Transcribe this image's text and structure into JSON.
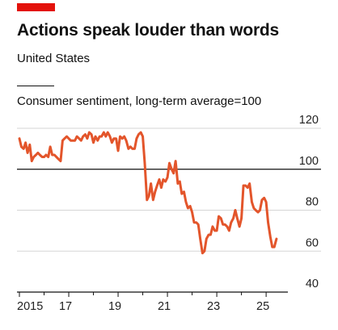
{
  "header": {
    "title": "Actions speak louder than words",
    "subtitle": "United States",
    "ylabel": "Consumer sentiment, long-term average=100"
  },
  "colors": {
    "accent": "#e3120b",
    "line": "#e3552b",
    "grid": "#d5d5d5",
    "axis": "#111111"
  },
  "chart_data": {
    "type": "line",
    "title": "Actions speak louder than words",
    "subtitle": "United States",
    "ylabel": "Consumer sentiment, long-term average=100",
    "xlabel": "",
    "xlim": [
      2015.0,
      2025.75
    ],
    "ylim": [
      40,
      120
    ],
    "yticks": [
      40,
      60,
      80,
      100,
      120
    ],
    "xticks": [
      {
        "value": 2015,
        "label": "2015"
      },
      {
        "value": 2017,
        "label": "17"
      },
      {
        "value": 2019,
        "label": "19"
      },
      {
        "value": 2021,
        "label": "21"
      },
      {
        "value": 2023,
        "label": "23"
      },
      {
        "value": 2025,
        "label": "25"
      }
    ],
    "grid": true,
    "reference_line": 100,
    "series": [
      {
        "x": [
          2015.0,
          2015.08,
          2015.17,
          2015.25,
          2015.33,
          2015.42,
          2015.5,
          2015.58,
          2015.67,
          2015.75,
          2015.83,
          2015.92,
          2016.0,
          2016.08,
          2016.17,
          2016.25,
          2016.33,
          2016.42,
          2016.5,
          2016.58,
          2016.67,
          2016.75,
          2016.83,
          2016.92,
          2017.0,
          2017.08,
          2017.17,
          2017.25,
          2017.33,
          2017.42,
          2017.5,
          2017.58,
          2017.67,
          2017.75,
          2017.83,
          2017.92,
          2018.0,
          2018.08,
          2018.17,
          2018.25,
          2018.33,
          2018.42,
          2018.5,
          2018.58,
          2018.67,
          2018.75,
          2018.83,
          2018.92,
          2019.0,
          2019.08,
          2019.17,
          2019.25,
          2019.33,
          2019.42,
          2019.5,
          2019.58,
          2019.67,
          2019.75,
          2019.83,
          2019.92,
          2020.0,
          2020.08,
          2020.17,
          2020.25,
          2020.33,
          2020.42,
          2020.5,
          2020.58,
          2020.67,
          2020.75,
          2020.83,
          2020.92,
          2021.0,
          2021.08,
          2021.17,
          2021.25,
          2021.33,
          2021.42,
          2021.5,
          2021.58,
          2021.67,
          2021.75,
          2021.83,
          2021.92,
          2022.0,
          2022.08,
          2022.17,
          2022.25,
          2022.33,
          2022.42,
          2022.5,
          2022.58,
          2022.67,
          2022.75,
          2022.83,
          2022.92,
          2023.0,
          2023.08,
          2023.17,
          2023.25,
          2023.33,
          2023.42,
          2023.5,
          2023.58,
          2023.67,
          2023.75,
          2023.83,
          2023.92,
          2024.0,
          2024.08,
          2024.17,
          2024.25,
          2024.33,
          2024.42,
          2024.5,
          2024.58,
          2024.67,
          2024.75,
          2024.83,
          2024.92,
          2025.0,
          2025.08,
          2025.17,
          2025.25,
          2025.33,
          2025.42
        ],
        "values": [
          115,
          111,
          110,
          113,
          108,
          112,
          104,
          106,
          107,
          108,
          107,
          106,
          106,
          107,
          106,
          111,
          107,
          107,
          106,
          105,
          104,
          114,
          115,
          116,
          115,
          114,
          114,
          114,
          116,
          115,
          114,
          116,
          117,
          115,
          118,
          117,
          113,
          116,
          114,
          116,
          116,
          118,
          116,
          118,
          116,
          113,
          115,
          115,
          109,
          116,
          115,
          116,
          114,
          110,
          111,
          110,
          110,
          115,
          117,
          118,
          116,
          103,
          85,
          87,
          93,
          85,
          89,
          92,
          95,
          91,
          95,
          94,
          96,
          103,
          100,
          98,
          104,
          93,
          94,
          88,
          89,
          84,
          81,
          82,
          79,
          74,
          74,
          73,
          66,
          59,
          60,
          66,
          68,
          68,
          72,
          70,
          70,
          77,
          76,
          73,
          73,
          72,
          70,
          74,
          76,
          80,
          76,
          72,
          76,
          92,
          92,
          91,
          93,
          84,
          81,
          80,
          79,
          80,
          85,
          86,
          84,
          74,
          67,
          62,
          62,
          66
        ]
      }
    ]
  }
}
